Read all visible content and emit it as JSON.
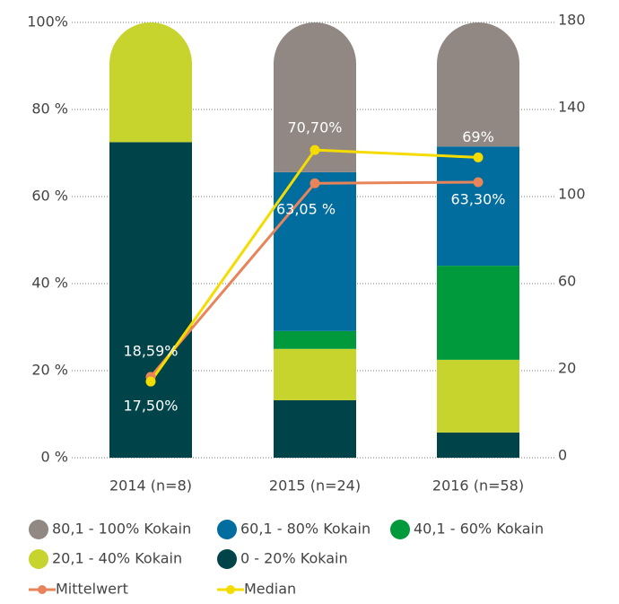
{
  "chart_data": {
    "type": "bar",
    "stacked": true,
    "categories": [
      "2014 (n=8)",
      "2015 (n=24)",
      "2016 (n=58)"
    ],
    "series": [
      {
        "name": "0 - 20% Kokain",
        "color": "#00444a",
        "values": [
          72.5,
          13.2,
          5.8
        ]
      },
      {
        "name": "20,1 - 40% Kokain",
        "color": "#c8d42e",
        "values": [
          27.5,
          11.8,
          16.7
        ]
      },
      {
        "name": "40,1 - 60% Kokain",
        "color": "#009a3d",
        "values": [
          0,
          4.1,
          21.6
        ]
      },
      {
        "name": "60,1 - 80% Kokain",
        "color": "#006d9e",
        "values": [
          0,
          36.5,
          27.4
        ]
      },
      {
        "name": "80,1 - 100% Kokain",
        "color": "#918783",
        "values": [
          0,
          34.4,
          28.5
        ]
      }
    ],
    "lines": [
      {
        "name": "Mittelwert",
        "color": "#e8845a",
        "values": [
          18.59,
          63.05,
          63.3
        ],
        "value_labels": [
          "18,59%",
          "63,05 %",
          "63,30%"
        ]
      },
      {
        "name": "Median",
        "color": "#f5dc00",
        "values": [
          17.5,
          70.7,
          69
        ],
        "value_labels": [
          "17,50%",
          "70,70%",
          "69%"
        ]
      }
    ],
    "ylim": [
      0,
      100
    ],
    "yticks": [
      {
        "value": 0,
        "label": "0 %"
      },
      {
        "value": 20,
        "label": "20 %"
      },
      {
        "value": 40,
        "label": "40 %"
      },
      {
        "value": 60,
        "label": "60 %"
      },
      {
        "value": 80,
        "label": "80 %"
      },
      {
        "value": 100,
        "label": "100%"
      }
    ],
    "y2ticks": [
      0,
      20,
      60,
      100,
      140,
      180
    ],
    "grid": true
  }
}
